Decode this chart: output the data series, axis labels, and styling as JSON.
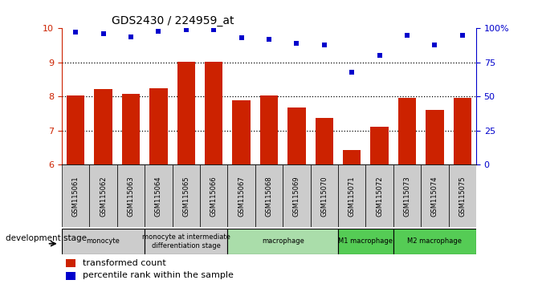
{
  "title": "GDS2430 / 224959_at",
  "samples": [
    "GSM115061",
    "GSM115062",
    "GSM115063",
    "GSM115064",
    "GSM115065",
    "GSM115066",
    "GSM115067",
    "GSM115068",
    "GSM115069",
    "GSM115070",
    "GSM115071",
    "GSM115072",
    "GSM115073",
    "GSM115074",
    "GSM115075"
  ],
  "transformed_count": [
    8.04,
    8.22,
    8.09,
    8.24,
    9.03,
    9.03,
    7.9,
    8.04,
    7.68,
    7.38,
    6.44,
    7.12,
    7.95,
    7.6,
    7.95
  ],
  "percentile_rank": [
    97,
    96,
    94,
    98,
    99,
    99,
    93,
    92,
    89,
    88,
    68,
    80,
    95,
    88,
    95
  ],
  "ylim_left": [
    6,
    10
  ],
  "bar_color": "#cc2200",
  "dot_color": "#0000cc",
  "stage_groups": [
    {
      "label": "monocyte",
      "start": 0,
      "end": 3,
      "color": "#cccccc"
    },
    {
      "label": "monocyte at intermediate\ndifferentiation stage",
      "start": 3,
      "end": 6,
      "color": "#cccccc"
    },
    {
      "label": "macrophage",
      "start": 6,
      "end": 10,
      "color": "#aaddaa"
    },
    {
      "label": "M1 macrophage",
      "start": 10,
      "end": 12,
      "color": "#55cc55"
    },
    {
      "label": "M2 macrophage",
      "start": 12,
      "end": 15,
      "color": "#55cc55"
    }
  ],
  "legend_labels": [
    "transformed count",
    "percentile rank within the sample"
  ],
  "dev_stage_label": "development stage"
}
